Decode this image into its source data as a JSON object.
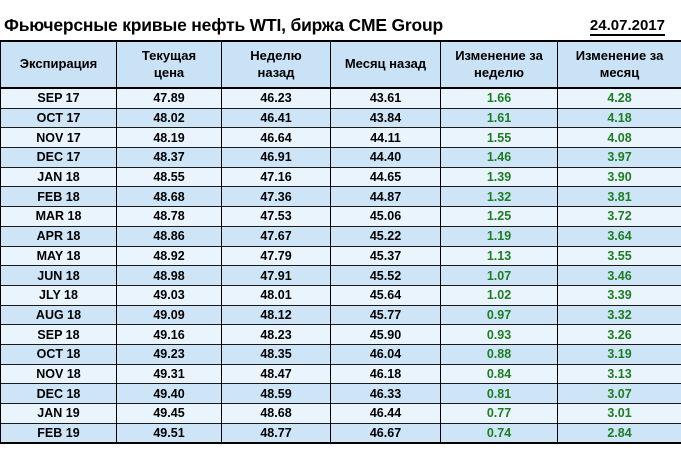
{
  "title": "Фьючерсные кривые нефть WTI, биржа CME Group",
  "date": "24.07.2017",
  "colors": {
    "header_bg": "#C9E2F5",
    "row_blue": "#CDE5F7",
    "row_light": "#EAF4FC",
    "change_green": "#1E7D23",
    "border": "#000000"
  },
  "chart_data": {
    "type": "table",
    "title": "Фьючерсные кривые нефть WTI, биржа CME Group",
    "date": "24.07.2017",
    "columns": [
      "Экспирация",
      "Текущая цена",
      "Неделю назад",
      "Месяц назад",
      "Изменение за неделю",
      "Изменение за месяц"
    ],
    "rows": [
      [
        "SEP 17",
        "47.89",
        "46.23",
        "43.61",
        "1.66",
        "4.28"
      ],
      [
        "OCT 17",
        "48.02",
        "46.41",
        "43.84",
        "1.61",
        "4.18"
      ],
      [
        "NOV 17",
        "48.19",
        "46.64",
        "44.11",
        "1.55",
        "4.08"
      ],
      [
        "DEC 17",
        "48.37",
        "46.91",
        "44.40",
        "1.46",
        "3.97"
      ],
      [
        "JAN 18",
        "48.55",
        "47.16",
        "44.65",
        "1.39",
        "3.90"
      ],
      [
        "FEB 18",
        "48.68",
        "47.36",
        "44.87",
        "1.32",
        "3.81"
      ],
      [
        "MAR 18",
        "48.78",
        "47.53",
        "45.06",
        "1.25",
        "3.72"
      ],
      [
        "APR 18",
        "48.86",
        "47.67",
        "45.22",
        "1.19",
        "3.64"
      ],
      [
        "MAY 18",
        "48.92",
        "47.79",
        "45.37",
        "1.13",
        "3.55"
      ],
      [
        "JUN 18",
        "48.98",
        "47.91",
        "45.52",
        "1.07",
        "3.46"
      ],
      [
        "JLY 18",
        "49.03",
        "48.01",
        "45.64",
        "1.02",
        "3.39"
      ],
      [
        "AUG 18",
        "49.09",
        "48.12",
        "45.77",
        "0.97",
        "3.32"
      ],
      [
        "SEP 18",
        "49.16",
        "48.23",
        "45.90",
        "0.93",
        "3.26"
      ],
      [
        "OCT 18",
        "49.23",
        "48.35",
        "46.04",
        "0.88",
        "3.19"
      ],
      [
        "NOV 18",
        "49.31",
        "48.47",
        "46.18",
        "0.84",
        "3.13"
      ],
      [
        "DEC 18",
        "49.40",
        "48.59",
        "46.33",
        "0.81",
        "3.07"
      ],
      [
        "JAN 19",
        "49.45",
        "48.68",
        "46.44",
        "0.77",
        "3.01"
      ],
      [
        "FEB 19",
        "49.51",
        "48.77",
        "46.67",
        "0.74",
        "2.84"
      ]
    ]
  }
}
